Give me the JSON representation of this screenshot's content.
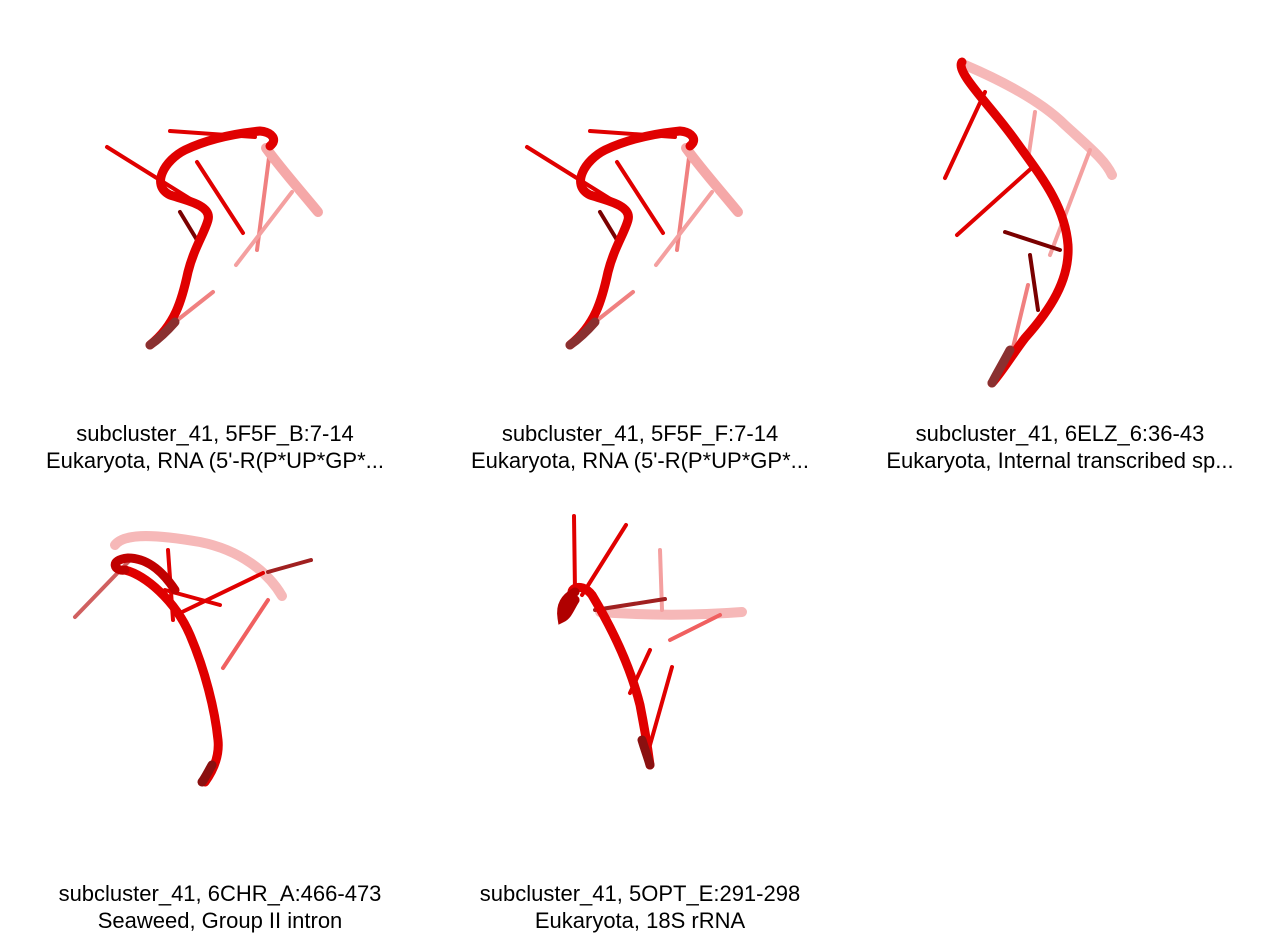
{
  "panels": [
    {
      "title": "subcluster_41, 5F5F_B:7-14",
      "subtitle": "Eukaryota, RNA (5'-R(P*UP*GP*..."
    },
    {
      "title": "subcluster_41, 5F5F_F:7-14",
      "subtitle": "Eukaryota, RNA (5'-R(P*UP*GP*..."
    },
    {
      "title": "subcluster_41, 6ELZ_6:36-43",
      "subtitle": "Eukaryota, Internal transcribed sp..."
    },
    {
      "title": "subcluster_41, 6CHR_A:466-473",
      "subtitle": "Seaweed, Group II intron"
    },
    {
      "title": "subcluster_41, 5OPT_E:291-298",
      "subtitle": "Eukaryota, 18S rRNA"
    }
  ],
  "colors": {
    "strand": "#e00000",
    "strand_dark": "#7a0000",
    "strand_faded": "#f08080",
    "background": "#ffffff"
  }
}
